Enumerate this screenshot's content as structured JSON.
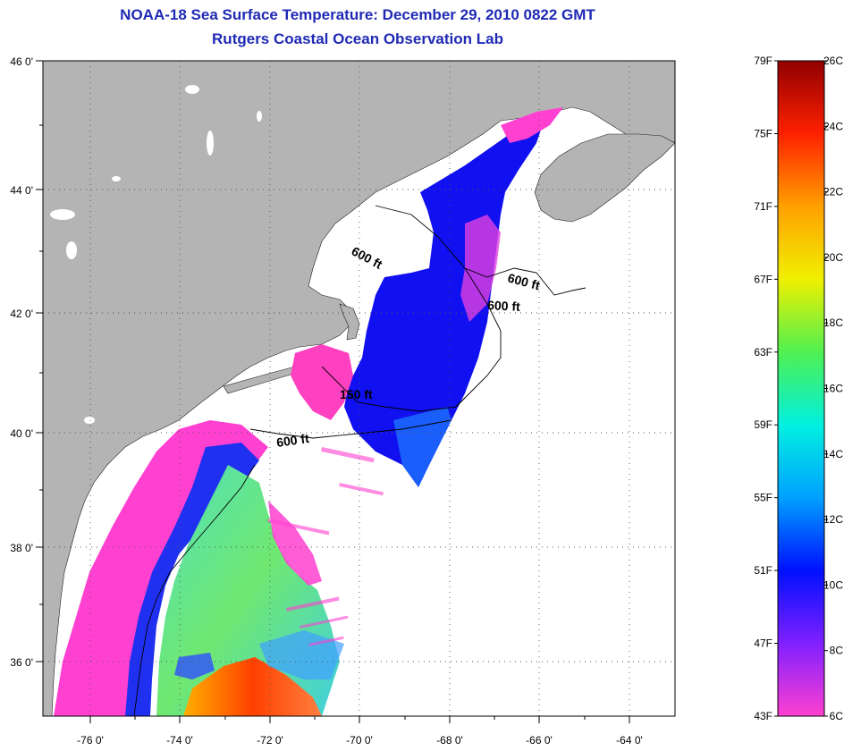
{
  "title_line1": "NOAA-18 Sea Surface Temperature:  December 29, 2010 0822 GMT",
  "title_line2": "Rutgers Coastal Ocean Observation Lab",
  "lat_labels": [
    "46 0'",
    "44 0'",
    "42 0'",
    "40 0'",
    "38 0'",
    "36 0'"
  ],
  "lon_labels": [
    "-76 0'",
    "-74 0'",
    "-72 0'",
    "-70 0'",
    "-68 0'",
    "-66 0'",
    "-64 0'"
  ],
  "contour_labels": [
    {
      "text": "600 ft",
      "rotate": 28
    },
    {
      "text": "600 ft",
      "rotate": 15
    },
    {
      "text": "600 ft",
      "rotate": 3
    },
    {
      "text": "150 ft",
      "rotate": 0
    },
    {
      "text": "600 ft",
      "rotate": -8
    }
  ],
  "colorbar": {
    "fahrenheit": [
      "79F",
      "75F",
      "71F",
      "67F",
      "63F",
      "59F",
      "55F",
      "51F",
      "47F",
      "43F"
    ],
    "celsius": [
      "26C",
      "24C",
      "22C",
      "20C",
      "18C",
      "16C",
      "14C",
      "12C",
      "10C",
      "8C",
      "6C"
    ],
    "range_F": [
      43,
      79
    ],
    "range_C": [
      6,
      26
    ],
    "colors": [
      "#ff40d0",
      "#8020ff",
      "#0010ff",
      "#00a0ff",
      "#00f0e0",
      "#50f050",
      "#f0f000",
      "#ffa000",
      "#ff2000",
      "#900000"
    ]
  },
  "colors": {
    "title": "#1f2ab4",
    "land": "#b4b4b4",
    "ocean_nodata": "#ffffff"
  }
}
